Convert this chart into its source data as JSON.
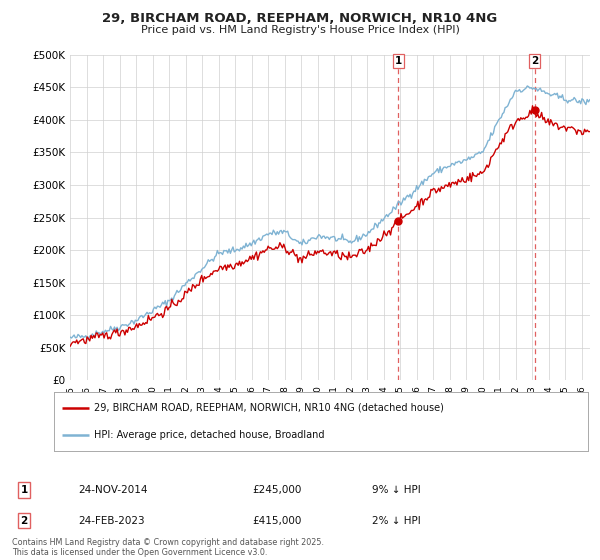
{
  "title": "29, BIRCHAM ROAD, REEPHAM, NORWICH, NR10 4NG",
  "subtitle": "Price paid vs. HM Land Registry's House Price Index (HPI)",
  "legend_label_red": "29, BIRCHAM ROAD, REEPHAM, NORWICH, NR10 4NG (detached house)",
  "legend_label_blue": "HPI: Average price, detached house, Broadland",
  "annotation1_label": "1",
  "annotation1_date": "24-NOV-2014",
  "annotation1_price": "£245,000",
  "annotation1_hpi": "9% ↓ HPI",
  "annotation2_label": "2",
  "annotation2_date": "24-FEB-2023",
  "annotation2_price": "£415,000",
  "annotation2_hpi": "2% ↓ HPI",
  "footer": "Contains HM Land Registry data © Crown copyright and database right 2025.\nThis data is licensed under the Open Government Licence v3.0.",
  "ylim": [
    0,
    500000
  ],
  "yticks": [
    0,
    50000,
    100000,
    150000,
    200000,
    250000,
    300000,
    350000,
    400000,
    450000,
    500000
  ],
  "ytick_labels": [
    "£0",
    "£50K",
    "£100K",
    "£150K",
    "£200K",
    "£250K",
    "£300K",
    "£350K",
    "£400K",
    "£450K",
    "£500K"
  ],
  "color_red": "#cc0000",
  "color_blue": "#7fb3d3",
  "color_dashed": "#e06060",
  "background_color": "#ffffff",
  "grid_color": "#d0d0d0",
  "vline1_x": 2014.9,
  "vline2_x": 2023.15,
  "sale1_x": 2014.9,
  "sale1_y": 245000,
  "sale2_x": 2023.15,
  "sale2_y": 415000,
  "xmin": 1995,
  "xmax": 2026.5
}
